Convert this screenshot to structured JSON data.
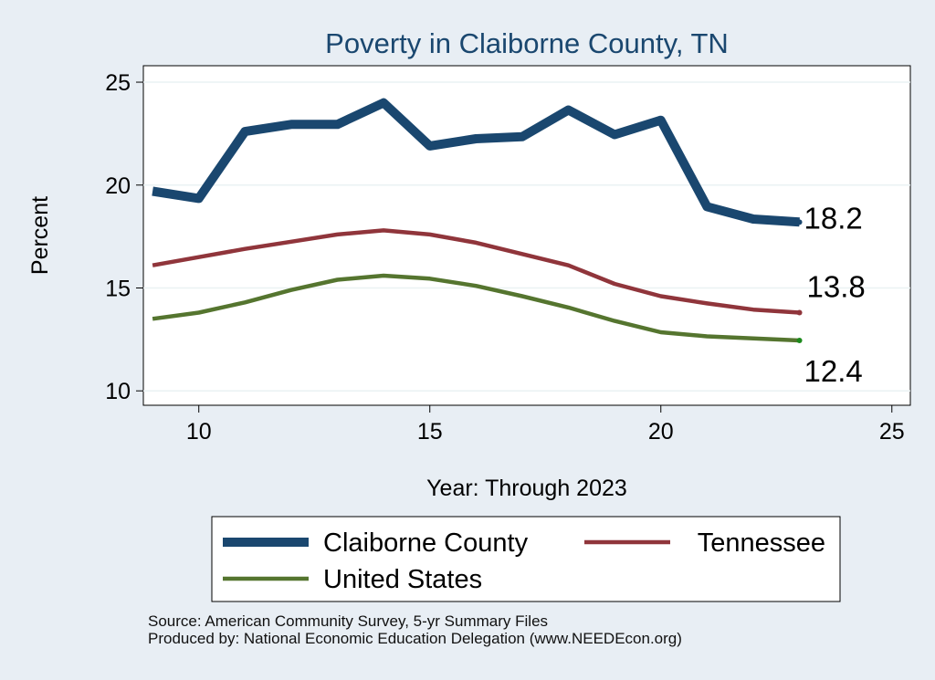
{
  "chart_data": {
    "type": "line",
    "title": "Poverty in Claiborne County, TN",
    "xlabel": "Year: Through 2023",
    "ylabel": "Percent",
    "xlim": [
      8.8,
      25.4
    ],
    "ylim": [
      9.3,
      25.8
    ],
    "xticks": [
      10,
      15,
      20,
      25
    ],
    "yticks": [
      10,
      15,
      20,
      25
    ],
    "grid": "horizontal",
    "legend_position": "bottom",
    "series": [
      {
        "name": "Claiborne County",
        "color": "#1a476f",
        "x": [
          9,
          10,
          11,
          12,
          13,
          14,
          15,
          16,
          17,
          18,
          19,
          20,
          21,
          22,
          23
        ],
        "values": [
          19.7,
          19.35,
          22.6,
          22.95,
          22.95,
          24.0,
          21.9,
          22.25,
          22.35,
          23.65,
          22.45,
          23.15,
          18.95,
          18.35,
          18.2
        ],
        "end_label": "18.2"
      },
      {
        "name": "Tennessee",
        "color": "#90353b",
        "x": [
          9,
          10,
          11,
          12,
          13,
          14,
          15,
          16,
          17,
          18,
          19,
          20,
          21,
          22,
          23
        ],
        "values": [
          16.1,
          16.5,
          16.9,
          17.25,
          17.6,
          17.8,
          17.6,
          17.2,
          16.65,
          16.1,
          15.2,
          14.6,
          14.25,
          13.95,
          13.8
        ],
        "end_label": "13.8"
      },
      {
        "name": "United States",
        "color": "#55752f",
        "x": [
          9,
          10,
          11,
          12,
          13,
          14,
          15,
          16,
          17,
          18,
          19,
          20,
          21,
          22,
          23
        ],
        "values": [
          13.5,
          13.8,
          14.3,
          14.9,
          15.4,
          15.6,
          15.45,
          15.1,
          14.6,
          14.05,
          13.4,
          12.85,
          12.65,
          12.55,
          12.45
        ],
        "end_label": "12.4"
      }
    ]
  },
  "notes": {
    "source": "Source: American Community Survey, 5-yr Summary Files",
    "produced_by": "Produced by: National Economic Education Delegation (www.NEEDEcon.org)"
  }
}
